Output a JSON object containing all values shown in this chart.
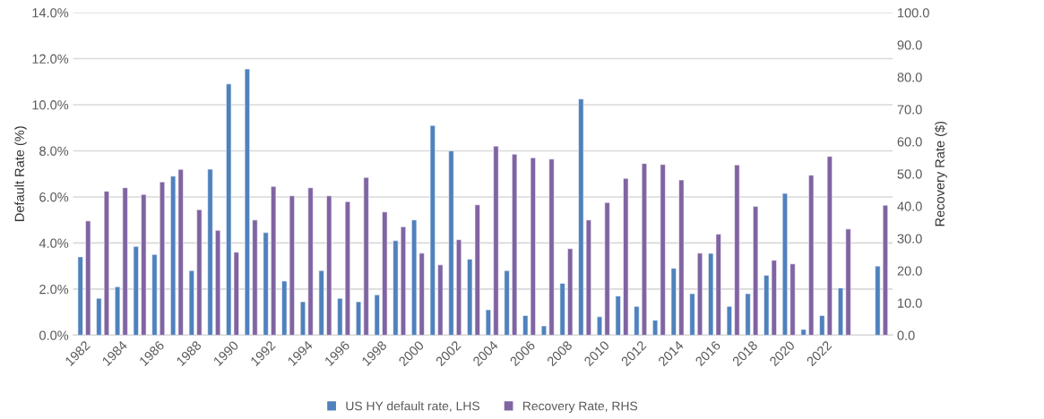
{
  "chart_data": {
    "type": "bar",
    "xlabel": null,
    "ylabel": "Default Rate (%)",
    "y2label": "Recovery Rate ($)",
    "categories": [
      "1982",
      null,
      "1984",
      null,
      "1986",
      null,
      "1988",
      null,
      "1990",
      null,
      "1992",
      null,
      "1994",
      null,
      "1996",
      null,
      "1998",
      null,
      "2000",
      null,
      "2002",
      null,
      "2004",
      null,
      "2006",
      null,
      "2008",
      null,
      "2010",
      null,
      "2012",
      null,
      "2014",
      null,
      "2016",
      null,
      "2018",
      null,
      "2020",
      null,
      "2022",
      null,
      null,
      null
    ],
    "series": [
      {
        "name": "US HY default rate, LHS",
        "color": "#4f81bd",
        "values": [
          3.4,
          1.6,
          2.1,
          3.85,
          3.5,
          6.9,
          2.8,
          7.2,
          10.9,
          11.55,
          4.45,
          2.35,
          1.45,
          2.8,
          1.6,
          1.45,
          1.75,
          4.1,
          5.0,
          9.1,
          8.0,
          3.3,
          1.1,
          2.8,
          0.85,
          0.4,
          2.25,
          10.25,
          0.8,
          1.7,
          1.25,
          0.65,
          2.9,
          1.8,
          3.55,
          1.25,
          1.8,
          2.6,
          6.15,
          0.25,
          0.85,
          2.05,
          null,
          3.0
        ]
      },
      {
        "name": "Recovery Rate, RHS",
        "color": "#8064a2",
        "axis": "y2",
        "values": [
          35.4,
          44.6,
          45.7,
          43.6,
          47.5,
          51.4,
          38.9,
          32.5,
          25.7,
          35.7,
          46.1,
          43.2,
          45.7,
          43.2,
          41.4,
          48.9,
          38.2,
          33.6,
          25.4,
          21.8,
          29.6,
          40.4,
          58.6,
          56.1,
          55.0,
          54.6,
          26.8,
          35.7,
          41.1,
          48.6,
          53.2,
          52.9,
          48.1,
          25.4,
          31.3,
          52.8,
          39.9,
          23.2,
          22.1,
          49.6,
          55.4,
          32.9,
          null,
          40.3
        ]
      }
    ],
    "ylim": [
      0,
      14
    ],
    "yticks": [
      {
        "value": 0,
        "label": "0.0%"
      },
      {
        "value": 2,
        "label": "2.0%"
      },
      {
        "value": 4,
        "label": "4.0%"
      },
      {
        "value": 6,
        "label": "6.0%"
      },
      {
        "value": 8,
        "label": "8.0%"
      },
      {
        "value": 10,
        "label": "10.0%"
      },
      {
        "value": 12,
        "label": "12.0%"
      },
      {
        "value": 14,
        "label": "14.0%"
      }
    ],
    "y2lim": [
      0,
      100
    ],
    "y2ticks": [
      {
        "value": 0,
        "label": "0.0"
      },
      {
        "value": 10,
        "label": "10.0"
      },
      {
        "value": 20,
        "label": "20.0"
      },
      {
        "value": 30,
        "label": "30.0"
      },
      {
        "value": 40,
        "label": "40.0"
      },
      {
        "value": 50,
        "label": "50.0"
      },
      {
        "value": 60,
        "label": "60.0"
      },
      {
        "value": 70,
        "label": "70.0"
      },
      {
        "value": 80,
        "label": "80.0"
      },
      {
        "value": 90,
        "label": "90.0"
      },
      {
        "value": 100,
        "label": "100.0"
      }
    ],
    "grid": "y",
    "legend": "bottom"
  }
}
